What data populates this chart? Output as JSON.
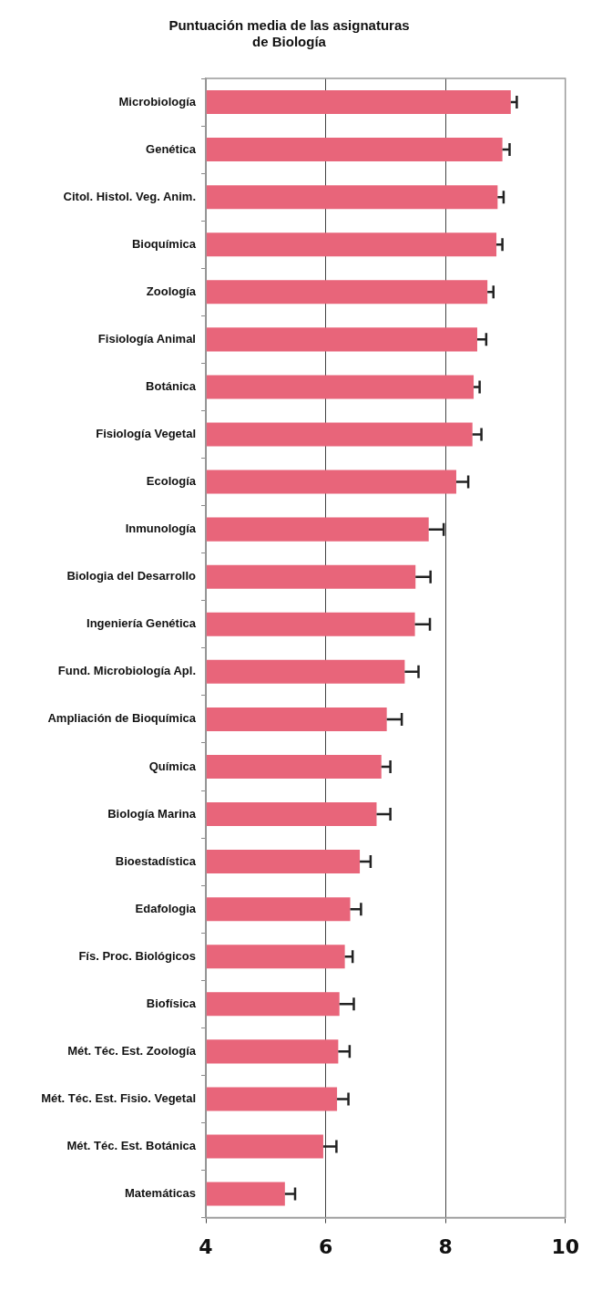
{
  "chart_data": {
    "type": "bar",
    "orientation": "horizontal",
    "title": "Puntuación media de las asignaturas\nde Biología",
    "categories": [
      "Microbiología",
      "Genética",
      "Citol. Histol. Veg. Anim.",
      "Bioquímica",
      "Zoología",
      "Fisiología Animal",
      "Botánica",
      "Fisiología Vegetal",
      "Ecología",
      "Inmunología",
      "Biologia del Desarrollo",
      "Ingeniería Genética",
      "Fund. Microbiología Apl.",
      "Ampliación de Bioquímica",
      "Química",
      "Biología Marina",
      "Bioestadística",
      "Edafologia",
      "Fís. Proc. Biológicos",
      "Biofísica",
      "Mét. Téc. Est. Zoología",
      "Mét. Téc. Est. Fisio. Vegetal",
      "Mét. Téc. Est. Botánica",
      "Matemáticas"
    ],
    "values": [
      9.09,
      8.95,
      8.87,
      8.85,
      8.7,
      8.53,
      8.47,
      8.45,
      8.18,
      7.72,
      7.5,
      7.49,
      7.32,
      7.02,
      6.93,
      6.85,
      6.57,
      6.41,
      6.32,
      6.23,
      6.21,
      6.19,
      5.96,
      5.32
    ],
    "errors": [
      0.1,
      0.12,
      0.1,
      0.1,
      0.1,
      0.15,
      0.1,
      0.15,
      0.2,
      0.25,
      0.25,
      0.25,
      0.23,
      0.25,
      0.15,
      0.23,
      0.18,
      0.18,
      0.13,
      0.24,
      0.19,
      0.19,
      0.22,
      0.17
    ],
    "color": "#e8657a",
    "xlim": [
      4,
      10
    ],
    "xticks": [
      4,
      6,
      8,
      10
    ],
    "grid": "x",
    "legend": false
  }
}
